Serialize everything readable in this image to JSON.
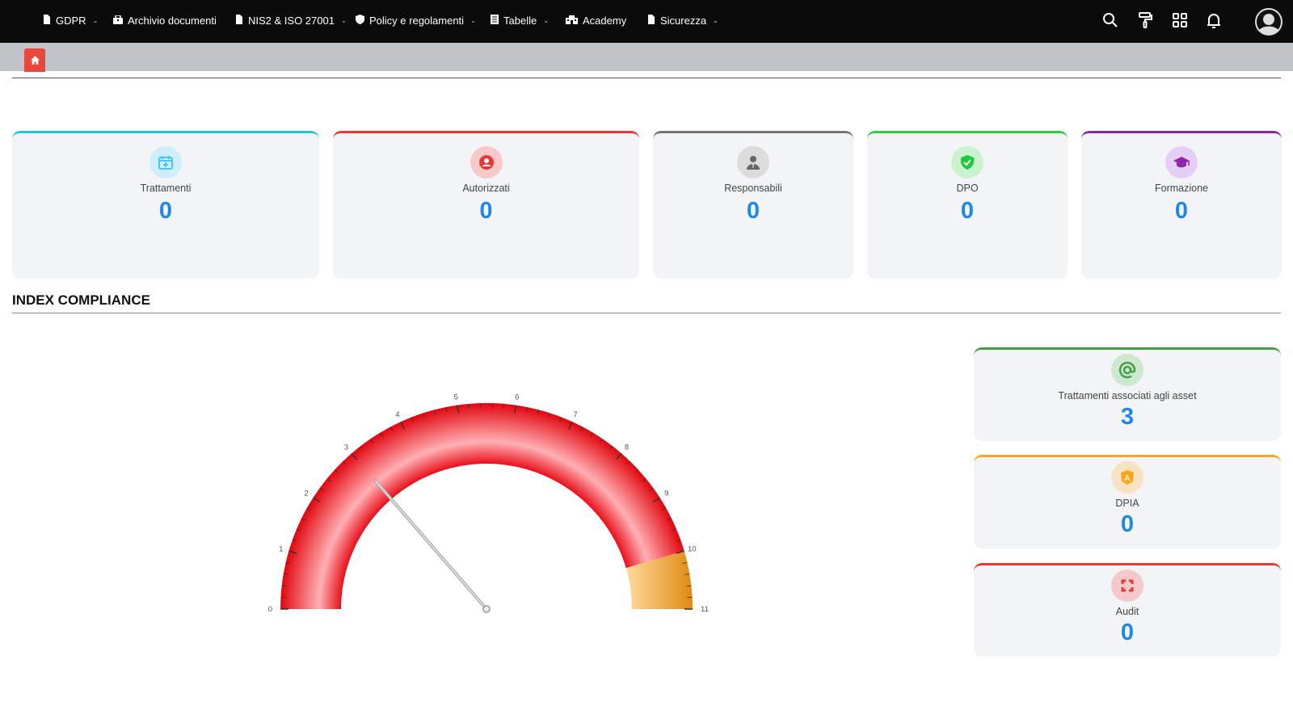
{
  "nav": {
    "items": [
      {
        "label": "GDPR",
        "icon": "document-icon",
        "dropdown": true
      },
      {
        "label": "Archivio documenti",
        "icon": "archive-icon",
        "dropdown": false
      },
      {
        "label": "NIS2 & ISO 27001",
        "icon": "document-icon",
        "dropdown": true
      },
      {
        "label": "Policy e regolamenti",
        "icon": "shield-icon",
        "dropdown": true
      },
      {
        "label": "Tabelle",
        "icon": "table-icon",
        "dropdown": true
      },
      {
        "label": "Academy",
        "icon": "school-icon",
        "dropdown": false
      },
      {
        "label": "Sicurezza",
        "icon": "document-icon",
        "dropdown": true
      }
    ],
    "right_icons": [
      "search-icon",
      "paint-roller-icon",
      "grid-icon",
      "bell-icon",
      "user-avatar-icon"
    ]
  },
  "breadcrumb": {
    "icon": "home-icon"
  },
  "stats": [
    {
      "label": "Trattamenti",
      "value": "0",
      "color": "#26c6da",
      "icon": "calendar-plus-icon"
    },
    {
      "label": "Autorizzati",
      "value": "0",
      "color": "#e53935",
      "icon": "user-circle-icon"
    },
    {
      "label": "Responsabili",
      "value": "0",
      "color": "#757575",
      "icon": "user-tie-icon"
    },
    {
      "label": "DPO",
      "value": "0",
      "color": "#2ecc40",
      "icon": "shield-check-icon"
    },
    {
      "label": "Formazione",
      "value": "0",
      "color": "#8e24aa",
      "icon": "graduation-cap-icon"
    }
  ],
  "section_title": "INDEX COMPLIANCE",
  "side_stats": [
    {
      "label": "Trattamenti associati agli asset",
      "value": "3",
      "color": "#43a047",
      "icon": "at-icon"
    },
    {
      "label": "DPIA",
      "value": "0",
      "color": "#f5a623",
      "icon": "angular-shield-icon"
    },
    {
      "label": "Audit",
      "value": "0",
      "color": "#e53935",
      "icon": "sync-icon"
    }
  ],
  "chart_data": {
    "type": "gauge",
    "min": 0,
    "max": 11,
    "ticks": [
      "0",
      "1",
      "2",
      "3",
      "4",
      "5",
      "6",
      "7",
      "8",
      "9",
      "10",
      "11"
    ],
    "value": 3,
    "bands": [
      {
        "from": 0,
        "to": 10,
        "color": "#e8101a"
      },
      {
        "from": 10,
        "to": 11,
        "color": "#f0a030"
      }
    ]
  }
}
